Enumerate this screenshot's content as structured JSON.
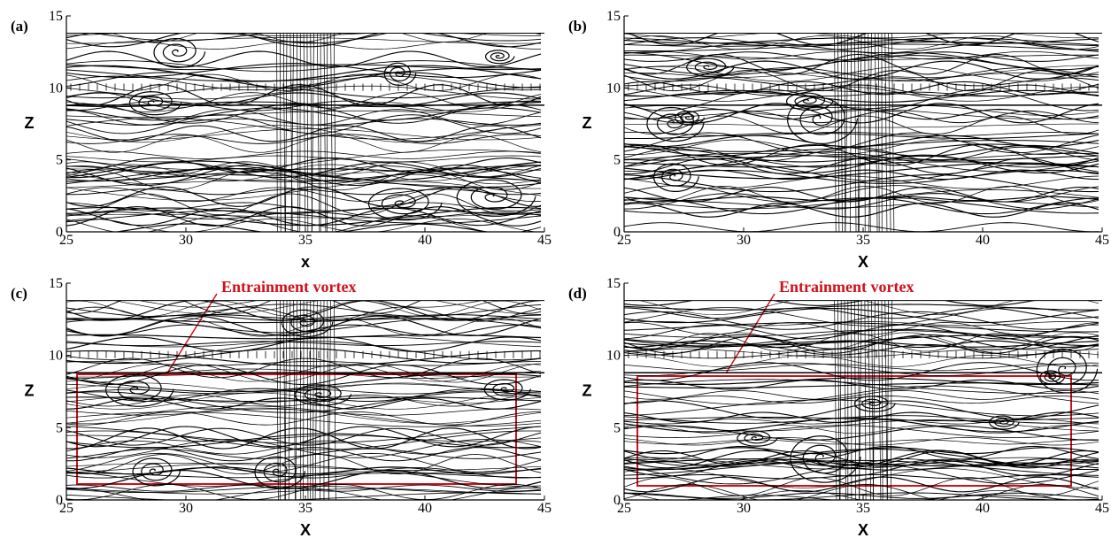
{
  "panels": [
    {
      "label": "(a)",
      "xlabel": "x",
      "ylabel": "Z",
      "xlim": [
        25,
        45
      ],
      "ylim": [
        0,
        15
      ],
      "xticks": [
        25,
        30,
        35,
        40,
        45
      ],
      "yticks": [
        0,
        5,
        10,
        15
      ]
    },
    {
      "label": "(b)",
      "xlabel": "X",
      "ylabel": "Z",
      "xlim": [
        25,
        45
      ],
      "ylim": [
        0,
        15
      ],
      "xticks": [
        25,
        30,
        35,
        40,
        45
      ],
      "yticks": [
        0,
        5,
        10,
        15
      ]
    },
    {
      "label": "(c)",
      "xlabel": "X",
      "ylabel": "Z",
      "xlim": [
        25,
        45
      ],
      "ylim": [
        0,
        15
      ],
      "xticks": [
        25,
        30,
        35,
        40,
        45
      ],
      "yticks": [
        0,
        5,
        10,
        15
      ],
      "annotation": "Entrainment vortex"
    },
    {
      "label": "(d)",
      "xlabel": "X",
      "ylabel": "Z",
      "xlim": [
        25,
        45
      ],
      "ylim": [
        0,
        15
      ],
      "xticks": [
        25,
        30,
        35,
        40,
        45
      ],
      "yticks": [
        0,
        5,
        10,
        15
      ],
      "annotation": "Entrainment vortex"
    }
  ]
}
